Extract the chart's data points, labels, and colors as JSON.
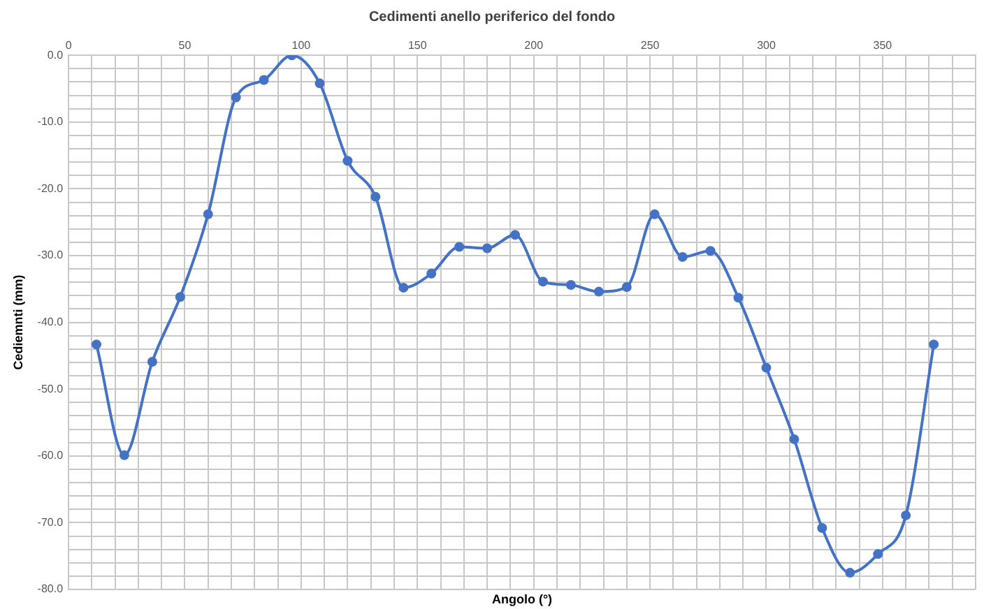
{
  "chart_data": {
    "type": "line",
    "title": "Cedimenti anello periferico del fondo",
    "xlabel": "Angolo (°)",
    "ylabel": "Cediemnti (mm)",
    "x": [
      12,
      24,
      36,
      48,
      60,
      72,
      84,
      96,
      108,
      120,
      132,
      144,
      156,
      168,
      180,
      192,
      204,
      216,
      228,
      240,
      252,
      264,
      276,
      288,
      300,
      312,
      324,
      336,
      348,
      360,
      372
    ],
    "series": [
      {
        "color": "#4472c4",
        "values": [
          -43.3,
          -59.9,
          -45.9,
          -36.2,
          -23.8,
          -6.3,
          -3.7,
          0,
          -4.2,
          -15.8,
          -21.2,
          -34.8,
          -32.7,
          -28.7,
          -28.9,
          -26.9,
          -33.9,
          -34.4,
          -35.4,
          -34.7,
          -23.8,
          -30.2,
          -29.3,
          -36.3,
          -46.8,
          -57.5,
          -70.8,
          -77.5,
          -74.7,
          -68.9,
          -43.3
        ]
      }
    ],
    "xlim": [
      0,
      390
    ],
    "xticks": [
      0,
      {
        "value": 10,
        "label": null
      },
      {
        "value": 20,
        "label": null
      },
      {
        "value": 30,
        "label": null
      },
      {
        "value": 40,
        "label": null
      },
      50,
      {
        "value": 60,
        "label": null
      },
      {
        "value": 70,
        "label": null
      },
      {
        "value": 80,
        "label": null
      },
      {
        "value": 90,
        "label": null
      },
      100,
      {
        "value": 110,
        "label": null
      },
      {
        "value": 120,
        "label": null
      },
      {
        "value": 130,
        "label": null
      },
      {
        "value": 140,
        "label": null
      },
      150,
      {
        "value": 160,
        "label": null
      },
      {
        "value": 170,
        "label": null
      },
      {
        "value": 180,
        "label": null
      },
      {
        "value": 190,
        "label": null
      },
      200,
      {
        "value": 210,
        "label": null
      },
      {
        "value": 220,
        "label": null
      },
      {
        "value": 230,
        "label": null
      },
      {
        "value": 240,
        "label": null
      },
      250,
      {
        "value": 260,
        "label": null
      },
      {
        "value": 270,
        "label": null
      },
      {
        "value": 280,
        "label": null
      },
      {
        "value": 290,
        "label": null
      },
      300,
      {
        "value": 310,
        "label": null
      },
      {
        "value": 320,
        "label": null
      },
      {
        "value": 330,
        "label": null
      },
      {
        "value": 340,
        "label": null
      },
      350,
      {
        "value": 360,
        "label": null
      },
      {
        "value": 370,
        "label": null
      },
      {
        "value": 380,
        "label": null
      },
      {
        "value": 390,
        "label": null
      }
    ],
    "ylim": [
      -80,
      0
    ],
    "yticks": [
      {
        "value": -80,
        "label": "-80.0"
      },
      {
        "value": -78,
        "label": null
      },
      {
        "value": -76,
        "label": null
      },
      {
        "value": -74,
        "label": null
      },
      {
        "value": -72,
        "label": null
      },
      {
        "value": -70,
        "label": "-70.0"
      },
      {
        "value": -68,
        "label": null
      },
      {
        "value": -66,
        "label": null
      },
      {
        "value": -64,
        "label": null
      },
      {
        "value": -62,
        "label": null
      },
      {
        "value": -60,
        "label": "-60.0"
      },
      {
        "value": -58,
        "label": null
      },
      {
        "value": -56,
        "label": null
      },
      {
        "value": -54,
        "label": null
      },
      {
        "value": -52,
        "label": null
      },
      {
        "value": -50,
        "label": "-50.0"
      },
      {
        "value": -48,
        "label": null
      },
      {
        "value": -46,
        "label": null
      },
      {
        "value": -44,
        "label": null
      },
      {
        "value": -42,
        "label": null
      },
      {
        "value": -40,
        "label": "-40.0"
      },
      {
        "value": -38,
        "label": null
      },
      {
        "value": -36,
        "label": null
      },
      {
        "value": -34,
        "label": null
      },
      {
        "value": -32,
        "label": null
      },
      {
        "value": -30,
        "label": "-30.0"
      },
      {
        "value": -28,
        "label": null
      },
      {
        "value": -26,
        "label": null
      },
      {
        "value": -24,
        "label": null
      },
      {
        "value": -22,
        "label": null
      },
      {
        "value": -20,
        "label": "-20.0"
      },
      {
        "value": -18,
        "label": null
      },
      {
        "value": -16,
        "label": null
      },
      {
        "value": -14,
        "label": null
      },
      {
        "value": -12,
        "label": null
      },
      {
        "value": -10,
        "label": "-10.0"
      },
      {
        "value": -8,
        "label": null
      },
      {
        "value": -6,
        "label": null
      },
      {
        "value": -4,
        "label": null
      },
      {
        "value": -2,
        "label": null
      },
      {
        "value": 0,
        "label": "0.0"
      }
    ],
    "grid": true,
    "marker": "circle",
    "line_style": "solid"
  }
}
